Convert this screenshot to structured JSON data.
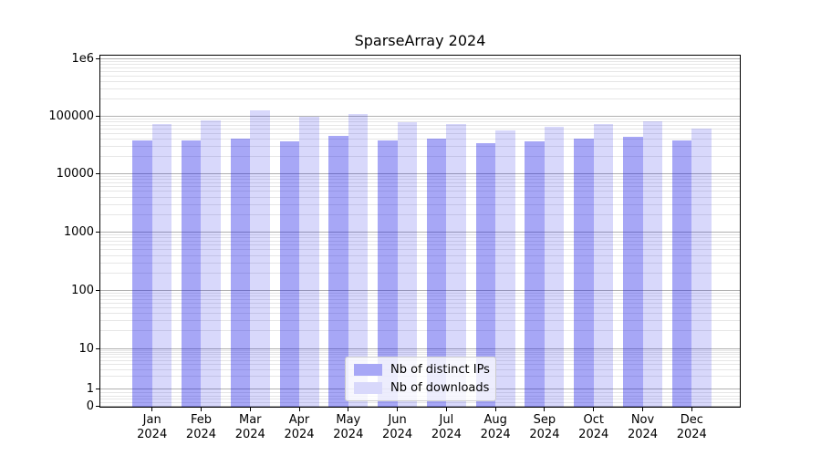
{
  "title": "SparseArray 2024",
  "chart_data": {
    "type": "bar",
    "title": "SparseArray 2024",
    "categories": [
      "Jan 2024",
      "Feb 2024",
      "Mar 2024",
      "Apr 2024",
      "May 2024",
      "Jun 2024",
      "Jul 2024",
      "Aug 2024",
      "Sep 2024",
      "Oct 2024",
      "Nov 2024",
      "Dec 2024"
    ],
    "x_tick_month": [
      "Jan",
      "Feb",
      "Mar",
      "Apr",
      "May",
      "Jun",
      "Jul",
      "Aug",
      "Sep",
      "Oct",
      "Nov",
      "Dec"
    ],
    "x_tick_year": "2024",
    "series": [
      {
        "name": "Nb of distinct IPs",
        "color": "#a7a7f6",
        "fill": "rgba(10,10,230,0.36)",
        "values": [
          38000,
          38500,
          41500,
          36000,
          45000,
          38500,
          41500,
          33500,
          36500,
          40500,
          44000,
          37500
        ]
      },
      {
        "name": "Nb of downloads",
        "color": "#d8d8fb",
        "fill": "rgba(10,10,230,0.16)",
        "values": [
          73000,
          85500,
          125500,
          96500,
          109000,
          77500,
          73000,
          57000,
          65000,
          73000,
          82000,
          61000
        ]
      }
    ],
    "yaxis": {
      "scale": "symlog",
      "tick_labels": [
        "1e6",
        "100000",
        "10000",
        "1000",
        "100",
        "10",
        "1",
        "0"
      ],
      "tick_values": [
        1000000,
        100000,
        10000,
        1000,
        100,
        10,
        1,
        0
      ],
      "ylim": [
        0,
        1200000
      ]
    },
    "xlabel": "",
    "ylabel": "",
    "grid": true,
    "grid_major_color": "#b0b0b0",
    "grid_minor_color": "#e6e6e6",
    "legend": {
      "location": "lower center",
      "entries": [
        "Nb of distinct IPs",
        "Nb of downloads"
      ]
    }
  }
}
